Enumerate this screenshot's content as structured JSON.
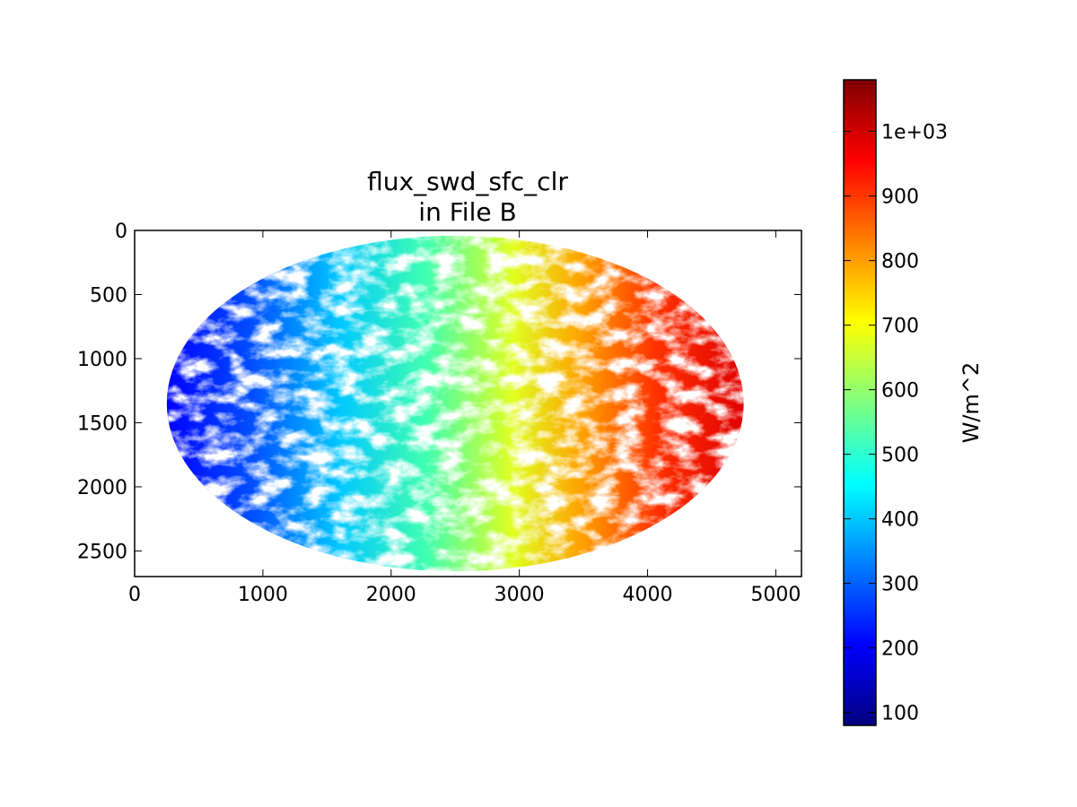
{
  "chart_data": {
    "type": "heatmap",
    "title": "flux_swd_sfc_clr",
    "subtitle": "in File B",
    "xlim": [
      0,
      5200
    ],
    "ylim": [
      2700,
      0
    ],
    "x_ticks": [
      0,
      1000,
      2000,
      3000,
      4000,
      5000
    ],
    "y_ticks": [
      0,
      500,
      1000,
      1500,
      2000,
      2500
    ],
    "x_tick_labels": [
      "0",
      "1000",
      "2000",
      "3000",
      "4000",
      "5000"
    ],
    "y_tick_labels": [
      "0",
      "500",
      "1000",
      "1500",
      "2000",
      "2500"
    ],
    "grid": false,
    "colormap": "jet",
    "colorbar": {
      "label": "W/m^2",
      "range": [
        80,
        1080
      ],
      "ticks": [
        100,
        200,
        300,
        400,
        500,
        600,
        700,
        800,
        900,
        1000
      ],
      "tick_labels": [
        "100",
        "200",
        "300",
        "400",
        "500",
        "600",
        "700",
        "800",
        "900",
        "1e+03"
      ],
      "placement": "right"
    },
    "disk": {
      "center_x": 2500,
      "center_y": 1350,
      "radius_x": 2250,
      "radius_y": 1310,
      "west_value": 150,
      "east_value": 1000
    }
  }
}
